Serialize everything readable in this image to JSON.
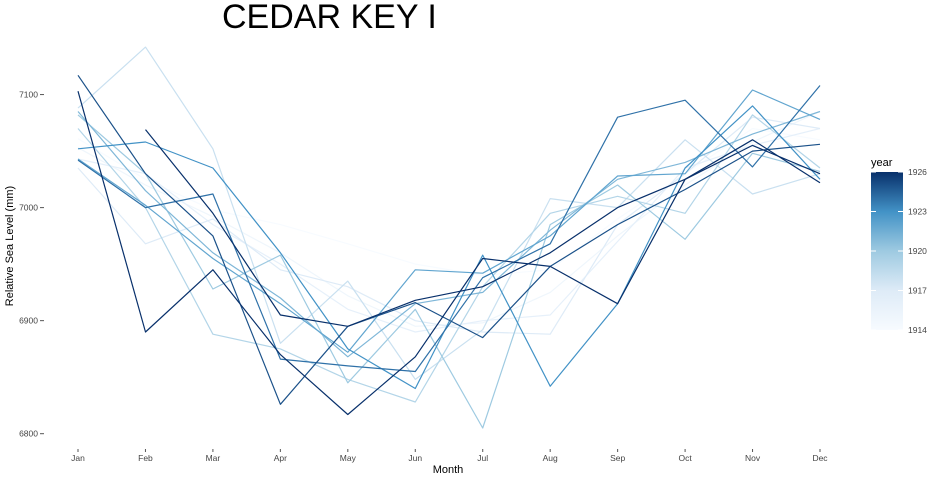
{
  "chart_data": {
    "type": "line",
    "title": "CEDAR KEY I",
    "xlabel": "Month",
    "ylabel": "Relative Sea Level (mm)",
    "categories": [
      "Jan",
      "Feb",
      "Mar",
      "Apr",
      "May",
      "Jun",
      "Jul",
      "Aug",
      "Sep",
      "Oct",
      "Nov",
      "Dec"
    ],
    "ylim": [
      6790,
      7135
    ],
    "yticks": [
      6800,
      6900,
      7000,
      7100
    ],
    "grid": false,
    "legend": {
      "title": "year",
      "position": "right",
      "type": "colorbar",
      "range": [
        1914,
        1926
      ],
      "ticks": [
        1914,
        1917,
        1920,
        1923,
        1926
      ],
      "color_low": "#f7fbff",
      "color_high": "#08306b"
    },
    "series": [
      {
        "year": 1914,
        "values": [
          7061,
          7025,
          6998,
          6985,
          6968,
          6950,
          6940,
          6945,
          6990,
          7030,
          7070,
          7060
        ]
      },
      {
        "year": 1915,
        "values": [
          7053,
          7020,
          6992,
          6960,
          6922,
          6895,
          6898,
          6925,
          6975,
          7020,
          7058,
          7085
        ]
      },
      {
        "year": 1916,
        "values": [
          7043,
          7030,
          6985,
          6950,
          6910,
          6890,
          6900,
          6905,
          6970,
          7035,
          7055,
          7070
        ]
      },
      {
        "year": 1917,
        "values": [
          7035,
          6968,
          6990,
          6945,
          6930,
          6900,
          6890,
          6888,
          6985,
          7030,
          7080,
          7070
        ]
      },
      {
        "year": 1918,
        "values": [
          7088,
          7142,
          7052,
          6880,
          6935,
          6848,
          6892,
          7008,
          7000,
          7060,
          7012,
          7030
        ]
      },
      {
        "year": 1919,
        "values": [
          7070,
          7000,
          6888,
          6875,
          6848,
          6828,
          6930,
          6995,
          7010,
          6995,
          7082,
          7035
        ]
      },
      {
        "year": 1920,
        "values": [
          7082,
          7030,
          6928,
          6958,
          6845,
          6910,
          6805,
          6985,
          7020,
          6972,
          7048,
          7032
        ]
      },
      {
        "year": 1921,
        "values": [
          7085,
          7015,
          6960,
          6920,
          6868,
          6915,
          6925,
          6980,
          7025,
          7040,
          7065,
          7085
        ]
      },
      {
        "year": 1922,
        "values": [
          7043,
          7002,
          6955,
          6915,
          6872,
          6945,
          6942,
          6975,
          7028,
          7030,
          7104,
          7078
        ]
      },
      {
        "year": 1923,
        "values": [
          7052,
          7058,
          7035,
          6960,
          6875,
          6840,
          6958,
          6842,
          6915,
          7035,
          7090,
          7025
        ]
      },
      {
        "year": 1924,
        "values": [
          7042,
          7000,
          7012,
          6866,
          6860,
          6855,
          6938,
          6968,
          7080,
          7095,
          7036,
          7108
        ]
      },
      {
        "year": 1925,
        "values": [
          7117,
          7030,
          6975,
          6826,
          6895,
          6916,
          6885,
          6948,
          6985,
          7016,
          7050,
          7056
        ]
      },
      {
        "year": 1926,
        "values": [
          7103,
          6890,
          6945,
          6870,
          6817,
          6868,
          6955,
          6948,
          6915,
          7025,
          7060,
          7022
        ]
      },
      {
        "year": 1926,
        "values": [
          null,
          7069,
          6995,
          6905,
          6895,
          6918,
          6930,
          6960,
          7000,
          7025,
          7055,
          7030
        ]
      }
    ]
  }
}
